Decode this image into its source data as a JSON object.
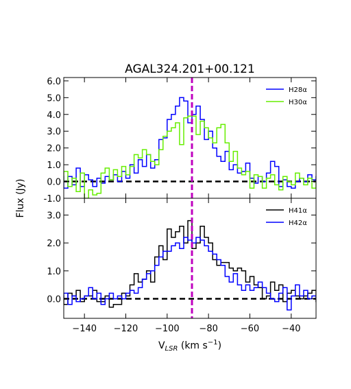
{
  "chart_data": {
    "type": "line",
    "title": "AGAL324.201+00.121",
    "ylabel": "Flux (Jy)",
    "xlabel_main": "V",
    "xlabel_sub": "LSR",
    "xlabel_unit": " (km s",
    "xlabel_exp": "−1",
    "xlabel_close": ")",
    "xlim": [
      -150,
      -28
    ],
    "x_ticks": [
      -140,
      -120,
      -100,
      -80,
      -60,
      -40
    ],
    "x_tick_labels": [
      "−140",
      "−120",
      "−100",
      "−80",
      "−60",
      "−40"
    ],
    "vline_x": -88,
    "vline_color": "#bf00bf",
    "panels": [
      {
        "ylim": [
          -1.0,
          6.2
        ],
        "y_ticks": [
          -1.0,
          0.0,
          1.0,
          2.0,
          3.0,
          4.0,
          5.0,
          6.0
        ],
        "y_tick_labels": [
          "-1.0",
          "0.0",
          "1.0",
          "2.0",
          "3.0",
          "4.0",
          "5.0",
          "6.0"
        ],
        "baseline": 0,
        "legend_position": "top-right",
        "series": [
          {
            "name": "H28α",
            "color": "#0000ff",
            "x": [
              -152,
              -150,
              -148,
              -146,
              -144,
              -142,
              -140,
              -138,
              -136,
              -134,
              -132,
              -130,
              -128,
              -126,
              -124,
              -122,
              -120,
              -118,
              -116,
              -114,
              -112,
              -110,
              -108,
              -106,
              -104,
              -102,
              -100,
              -98,
              -96,
              -94,
              -92,
              -90,
              -88,
              -86,
              -84,
              -82,
              -80,
              -78,
              -76,
              -74,
              -72,
              -70,
              -68,
              -66,
              -64,
              -62,
              -60,
              -58,
              -56,
              -54,
              -52,
              -50,
              -48,
              -46,
              -44,
              -42,
              -40,
              -38,
              -36,
              -34,
              -32,
              -30,
              -28
            ],
            "y": [
              0.3,
              -0.4,
              0.3,
              -0.2,
              0.8,
              -0.3,
              0.4,
              0.1,
              -0.3,
              0.2,
              -0.1,
              0.3,
              0.1,
              0.4,
              0.0,
              0.6,
              0.2,
              1.0,
              0.5,
              1.3,
              0.9,
              1.6,
              0.8,
              1.3,
              2.5,
              2.6,
              3.7,
              4.0,
              4.5,
              5.0,
              4.8,
              3.5,
              4.0,
              4.5,
              3.7,
              2.5,
              3.0,
              2.0,
              1.5,
              1.2,
              1.8,
              0.7,
              1.0,
              0.5,
              0.6,
              1.1,
              0.2,
              -0.1,
              0.3,
              0.0,
              0.5,
              1.2,
              0.9,
              -0.3,
              0.1,
              -0.3,
              -0.4,
              0.0,
              0.2,
              0.0,
              0.4,
              0.1,
              0.3
            ]
          },
          {
            "name": "H30α",
            "color": "#66ee00",
            "x": [
              -152,
              -150,
              -148,
              -146,
              -144,
              -142,
              -140,
              -138,
              -136,
              -134,
              -132,
              -130,
              -128,
              -126,
              -124,
              -122,
              -120,
              -118,
              -116,
              -114,
              -112,
              -110,
              -108,
              -106,
              -104,
              -102,
              -100,
              -98,
              -96,
              -94,
              -92,
              -90,
              -88,
              -86,
              -84,
              -82,
              -80,
              -78,
              -76,
              -74,
              -72,
              -70,
              -68,
              -66,
              -64,
              -62,
              -60,
              -58,
              -56,
              -54,
              -52,
              -50,
              -48,
              -46,
              -44,
              -42,
              -40,
              -38,
              -36,
              -34,
              -32,
              -30,
              -28
            ],
            "y": [
              0.0,
              0.6,
              -0.3,
              0.2,
              -0.6,
              0.5,
              -1.0,
              -0.5,
              -0.8,
              -0.7,
              0.5,
              0.8,
              0.1,
              0.7,
              0.3,
              0.9,
              0.4,
              0.9,
              1.6,
              1.4,
              1.9,
              1.6,
              1.2,
              1.0,
              1.9,
              2.7,
              3.0,
              3.2,
              3.5,
              2.2,
              3.8,
              3.9,
              3.9,
              2.8,
              3.6,
              3.2,
              2.6,
              2.3,
              3.2,
              3.4,
              2.3,
              1.2,
              1.8,
              0.8,
              0.4,
              0.6,
              -0.4,
              0.4,
              0.3,
              -0.4,
              0.2,
              0.4,
              -0.2,
              -0.5,
              0.3,
              0.0,
              -0.2,
              0.5,
              0.2,
              -0.2,
              0.2,
              -0.4,
              0.0
            ]
          }
        ]
      },
      {
        "ylim": [
          -0.7,
          3.6
        ],
        "y_ticks": [
          0.0,
          1.0,
          2.0,
          3.0
        ],
        "y_tick_labels": [
          "0.0",
          "1.0",
          "2.0",
          "3.0"
        ],
        "baseline": 0,
        "legend_position": "top-right",
        "series": [
          {
            "name": "H41α",
            "color": "#000000",
            "x": [
              -152,
              -150,
              -148,
              -146,
              -144,
              -142,
              -140,
              -138,
              -136,
              -134,
              -132,
              -130,
              -128,
              -126,
              -124,
              -122,
              -120,
              -118,
              -116,
              -114,
              -112,
              -110,
              -108,
              -106,
              -104,
              -102,
              -100,
              -98,
              -96,
              -94,
              -92,
              -90,
              -88,
              -86,
              -84,
              -82,
              -80,
              -78,
              -76,
              -74,
              -72,
              -70,
              -68,
              -66,
              -64,
              -62,
              -60,
              -58,
              -56,
              -54,
              -52,
              -50,
              -48,
              -46,
              -44,
              -42,
              -40,
              -38,
              -36,
              -34,
              -32,
              -30,
              -28
            ],
            "y": [
              0.1,
              -0.2,
              0.2,
              0.1,
              0.3,
              -0.1,
              0.1,
              0.1,
              0.3,
              -0.1,
              -0.1,
              0.1,
              -0.3,
              -0.2,
              -0.2,
              0.2,
              0.1,
              0.5,
              0.9,
              0.6,
              0.7,
              1.0,
              0.6,
              1.5,
              1.9,
              1.4,
              2.5,
              2.2,
              2.4,
              2.6,
              2.0,
              2.8,
              1.8,
              2.0,
              2.6,
              2.2,
              2.0,
              1.4,
              1.2,
              1.3,
              1.3,
              1.1,
              1.0,
              1.1,
              1.0,
              0.6,
              0.8,
              0.5,
              0.4,
              0.0,
              0.1,
              0.6,
              0.3,
              0.5,
              -0.1,
              0.2,
              0.3,
              0.1,
              0.0,
              0.1,
              0.2,
              0.3,
              -0.1
            ]
          },
          {
            "name": "H42α",
            "color": "#0000ff",
            "x": [
              -152,
              -150,
              -148,
              -146,
              -144,
              -142,
              -140,
              -138,
              -136,
              -134,
              -132,
              -130,
              -128,
              -126,
              -124,
              -122,
              -120,
              -118,
              -116,
              -114,
              -112,
              -110,
              -108,
              -106,
              -104,
              -102,
              -100,
              -98,
              -96,
              -94,
              -92,
              -90,
              -88,
              -86,
              -84,
              -82,
              -80,
              -78,
              -76,
              -74,
              -72,
              -70,
              -68,
              -66,
              -64,
              -62,
              -60,
              -58,
              -56,
              -54,
              -52,
              -50,
              -48,
              -46,
              -44,
              -42,
              -40,
              -38,
              -36,
              -34,
              -32,
              -30,
              -28
            ],
            "y": [
              0.0,
              0.2,
              -0.2,
              0.1,
              -0.1,
              0.0,
              0.1,
              0.4,
              0.0,
              0.2,
              -0.2,
              0.0,
              0.2,
              0.0,
              0.1,
              0.0,
              0.2,
              0.3,
              0.2,
              0.4,
              0.7,
              0.9,
              1.0,
              1.2,
              1.5,
              1.7,
              1.7,
              1.9,
              2.0,
              1.8,
              2.2,
              2.1,
              2.0,
              2.2,
              2.1,
              1.9,
              1.7,
              1.6,
              1.4,
              1.2,
              0.8,
              0.6,
              0.9,
              0.5,
              0.3,
              0.5,
              0.3,
              0.4,
              0.6,
              0.4,
              0.2,
              0.0,
              -0.1,
              0.2,
              0.4,
              -0.4,
              0.1,
              0.5,
              0.1,
              0.3,
              0.0,
              0.1,
              0.0
            ]
          }
        ]
      }
    ]
  }
}
